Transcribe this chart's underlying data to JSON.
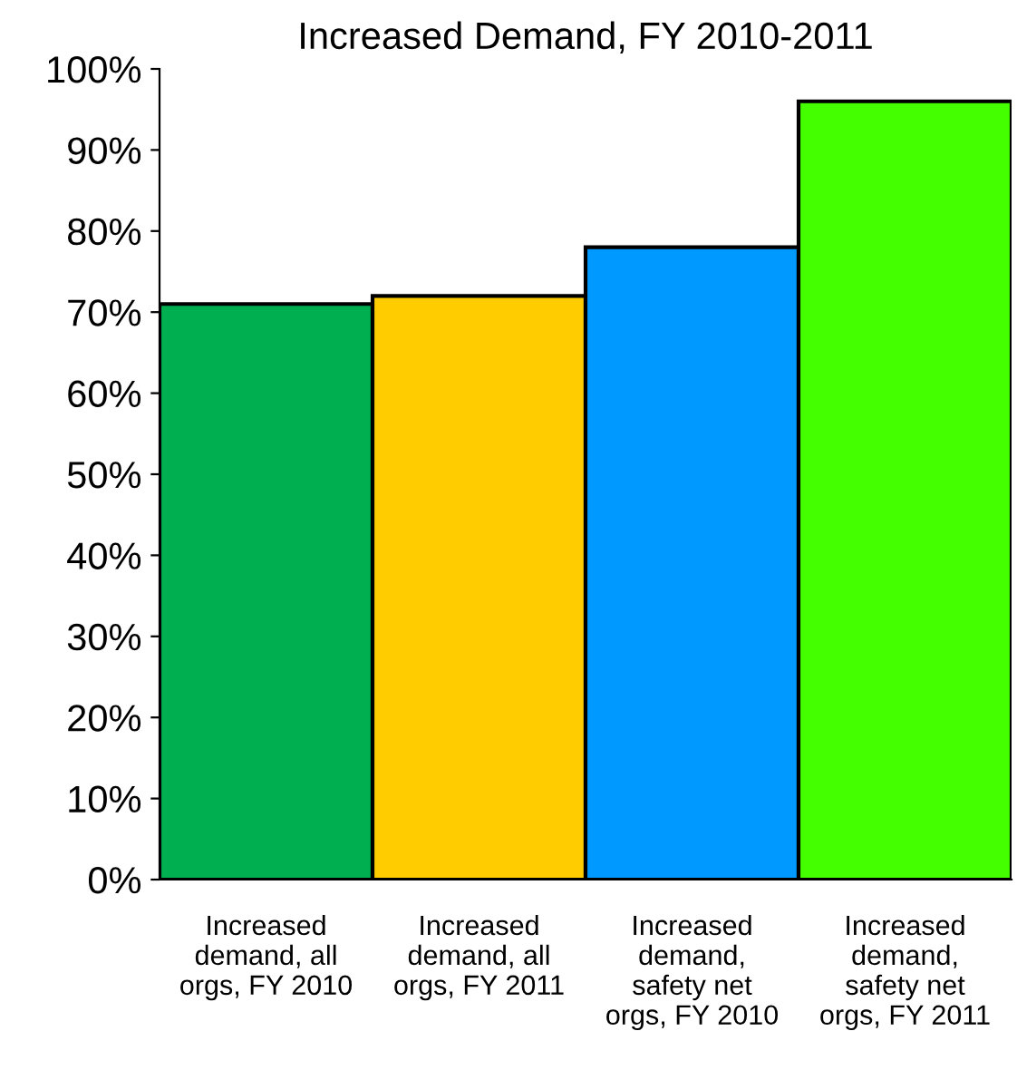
{
  "chart_data": {
    "type": "bar",
    "title": "Increased Demand, FY 2010-2011",
    "categories": [
      "Increased\ndemand, all\norgs, FY 2010",
      "Increased\ndemand, all\norgs, FY 2011",
      "Increased\ndemand,\nsafety net\norgs, FY 2010",
      "Increased\ndemand,\nsafety net\norgs, FY 2011"
    ],
    "values": [
      71,
      72,
      78,
      96
    ],
    "colors": [
      "#00b050",
      "#ffcc00",
      "#0099ff",
      "#44ff00"
    ],
    "ylim": [
      0,
      100
    ],
    "yticks": [
      {
        "value": 0,
        "label": "0%"
      },
      {
        "value": 10,
        "label": "10%"
      },
      {
        "value": 20,
        "label": "20%"
      },
      {
        "value": 30,
        "label": "30%"
      },
      {
        "value": 40,
        "label": "40%"
      },
      {
        "value": 50,
        "label": "50%"
      },
      {
        "value": 60,
        "label": "60%"
      },
      {
        "value": 70,
        "label": "70%"
      },
      {
        "value": 80,
        "label": "80%"
      },
      {
        "value": 90,
        "label": "90%"
      },
      {
        "value": 100,
        "label": "100%"
      }
    ],
    "grid": false,
    "legend": false
  }
}
